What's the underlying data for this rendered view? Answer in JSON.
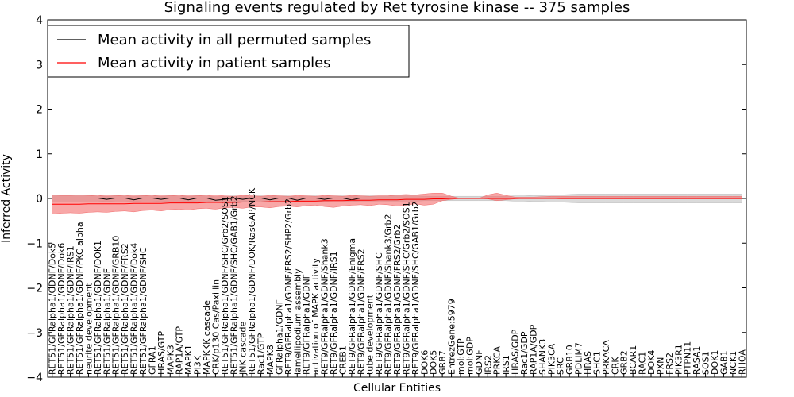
{
  "chart_data": {
    "type": "line",
    "title": "Signaling events regulated by Ret tyrosine kinase -- 375 samples",
    "xlabel": "Cellular Entities",
    "ylabel": "Inferred Activity",
    "ylim": [
      -4,
      4
    ],
    "yticks": [
      -4,
      -3,
      -2,
      -1,
      0,
      1,
      2,
      3,
      4
    ],
    "grid": false,
    "legend_position": "top-left",
    "categories": [
      "RET51/GFRalpha1/GDNF/Dok5",
      "RET51/GFRalpha1/GDNF/Dok6",
      "RET51/GFRalpha1/GDNF/IRS1",
      "RET51/GFRalpha1/GDNF/PKC alpha",
      "neurite development",
      "RET51/GFRalpha1/GDNF/DOK1",
      "RET51/GFRalpha1/GDNF",
      "RET51/GFRalpha1/GDNF/GRB10",
      "RET51/GFRalpha1/GDNF/FRS2",
      "RET51/GFRalpha1/GDNF/Dok4",
      "RET51/GFRalpha1/GDNF/SHC",
      "GFRA1",
      "HRAS/GTP",
      "MAPK3",
      "RAP1A/GTP",
      "MAPK1",
      "PI3K",
      "MAPKKK cascade",
      "CRK/p130 Cas/Paxillin",
      "RET51/GFRalpha1/GDNF/SHC/Grb2/SOS1",
      "RET51/GFRalpha1/GDNF/SHC/GAB1/Grb2",
      "JNK cascade",
      "RET51/GFRalpha1/GDNF/DOK/RasGAP/NCK",
      "Rac1/GTP",
      "MAPK8",
      "GFRalpha1/GDNF",
      "RET9/GFRalpha1/GDNF/FRS2/SHP2/Grb2",
      "lamellipodium assembly",
      "RET9/GFRalpha1/GDNF",
      "activation of MAPK activity",
      "RET9/GFRalpha1/GDNF/Shank3",
      "RET9/GFRalpha1/GDNF/IRS1",
      "CREB1",
      "RET9/GFRalpha1/GDNF/Enigma",
      "RET9/GFRalpha1/GDNF/FRS2",
      "tube development",
      "RET9/GFRalpha1/GDNF/SHC",
      "RET9/GFRalpha1/GDNF/Shank3/Grb2",
      "RET9/GFRalpha1/GDNF/FRS2/Grb2",
      "RET9/GFRalpha1/GDNF/SHC/Grb2/SOS1",
      "RET9/GFRalpha1/GDNF/SHC/GAB1/Grb2",
      "DOK6",
      "DOK5",
      "GRB7",
      "EntrezGene:5979",
      "mol:GTP",
      "mol:GDP",
      "GDNF",
      "IRS2",
      "PRKCA",
      "IRS1",
      "HRAS/GDP",
      "Rac1/GDP",
      "RAP1A/GDP",
      "SHANK3",
      "PIK3CA",
      "SRC",
      "GRB10",
      "PDLIM7",
      "HRAS",
      "SHC1",
      "PRKACA",
      "CRK",
      "GRB2",
      "BCAR1",
      "RAC1",
      "DOK4",
      "PXN",
      "FRS2",
      "PIK3R1",
      "PTPN11",
      "RASA1",
      "SOS1",
      "DOK1",
      "GAB1",
      "NCK1",
      "RHOA"
    ],
    "series": [
      {
        "name": "Mean activity in all permuted samples",
        "color": "#000000",
        "band_color": "#bbbbbb",
        "values": [
          0.01,
          0.01,
          0.01,
          0.01,
          0.01,
          0.01,
          -0.02,
          0.01,
          0.01,
          -0.03,
          0.01,
          0.01,
          -0.02,
          0.01,
          0.01,
          -0.03,
          0.01,
          0.01,
          -0.04,
          -0.02,
          0.01,
          -0.02,
          0.01,
          0.01,
          -0.03,
          0.01,
          0.01,
          -0.04,
          0.01,
          0.01,
          -0.02,
          0.01,
          0.01,
          -0.03,
          0.01,
          0.01,
          0.01,
          0.01,
          0.01,
          0.01,
          0.01,
          0.01,
          0.01,
          0.01,
          0.01,
          0.0,
          0.0,
          0.0,
          0.0,
          0.0,
          0.0,
          0.0,
          0.0,
          0.0,
          0.0,
          0.0,
          0.0,
          0.0,
          0.0,
          0.0,
          0.0,
          0.0,
          0.0,
          0.0,
          0.0,
          0.0,
          0.0,
          0.0,
          0.0,
          0.0,
          0.0,
          0.0,
          0.0,
          0.0,
          0.0,
          0.0,
          0.0
        ],
        "lower": [
          -0.06,
          -0.06,
          -0.06,
          -0.06,
          -0.06,
          -0.06,
          -0.07,
          -0.06,
          -0.06,
          -0.07,
          -0.06,
          -0.06,
          -0.07,
          -0.06,
          -0.06,
          -0.07,
          -0.06,
          -0.06,
          -0.08,
          -0.07,
          -0.06,
          -0.07,
          -0.06,
          -0.06,
          -0.07,
          -0.06,
          -0.06,
          -0.08,
          -0.06,
          -0.06,
          -0.07,
          -0.06,
          -0.06,
          -0.07,
          -0.06,
          -0.06,
          -0.06,
          -0.06,
          -0.06,
          -0.06,
          -0.06,
          -0.05,
          -0.05,
          -0.05,
          -0.05,
          -0.05,
          -0.05,
          -0.05,
          -0.05,
          -0.05,
          -0.05,
          -0.06,
          -0.06,
          -0.07,
          -0.07,
          -0.08,
          -0.08,
          -0.09,
          -0.1,
          -0.1,
          -0.1,
          -0.1,
          -0.1,
          -0.1,
          -0.1,
          -0.1,
          -0.1,
          -0.1,
          -0.1,
          -0.1,
          -0.1,
          -0.1,
          -0.1,
          -0.1,
          -0.1,
          -0.1,
          -0.1
        ],
        "upper": [
          0.06,
          0.06,
          0.06,
          0.06,
          0.06,
          0.06,
          0.05,
          0.06,
          0.06,
          0.05,
          0.06,
          0.06,
          0.05,
          0.06,
          0.06,
          0.05,
          0.06,
          0.06,
          0.04,
          0.05,
          0.06,
          0.05,
          0.06,
          0.06,
          0.05,
          0.06,
          0.06,
          0.04,
          0.06,
          0.06,
          0.05,
          0.06,
          0.06,
          0.05,
          0.06,
          0.06,
          0.06,
          0.06,
          0.06,
          0.06,
          0.06,
          0.05,
          0.05,
          0.05,
          0.05,
          0.05,
          0.05,
          0.05,
          0.05,
          0.05,
          0.05,
          0.06,
          0.06,
          0.07,
          0.07,
          0.08,
          0.08,
          0.09,
          0.1,
          0.1,
          0.1,
          0.1,
          0.1,
          0.1,
          0.1,
          0.1,
          0.1,
          0.1,
          0.1,
          0.1,
          0.1,
          0.1,
          0.1,
          0.1,
          0.1,
          0.1,
          0.1
        ]
      },
      {
        "name": "Mean activity in patient samples",
        "color": "#ff0000",
        "band_color": "#f36c6c",
        "values": [
          -0.13,
          -0.13,
          -0.13,
          -0.13,
          -0.12,
          -0.12,
          -0.12,
          -0.12,
          -0.12,
          -0.11,
          -0.11,
          -0.11,
          -0.11,
          -0.1,
          -0.1,
          -0.1,
          -0.1,
          -0.09,
          -0.09,
          -0.09,
          -0.09,
          -0.08,
          -0.08,
          -0.08,
          -0.07,
          -0.07,
          -0.07,
          -0.06,
          -0.06,
          -0.06,
          -0.05,
          -0.05,
          -0.05,
          -0.04,
          -0.04,
          -0.04,
          -0.03,
          -0.03,
          -0.03,
          -0.02,
          -0.02,
          -0.02,
          -0.01,
          -0.01,
          0.0,
          0.0,
          0.0,
          0.0,
          0.0,
          0.0,
          0.0,
          0.0,
          0.0,
          0.0,
          0.0,
          0.0,
          0.0,
          0.0,
          0.0,
          0.0,
          0.0,
          0.0,
          0.0,
          0.0,
          0.0,
          0.0,
          0.0,
          0.0,
          0.0,
          0.0,
          0.0,
          0.0,
          0.0,
          0.0,
          0.0,
          0.0,
          0.0
        ],
        "lower": [
          -0.35,
          -0.33,
          -0.32,
          -0.33,
          -0.31,
          -0.3,
          -0.31,
          -0.29,
          -0.28,
          -0.3,
          -0.27,
          -0.26,
          -0.28,
          -0.25,
          -0.24,
          -0.26,
          -0.23,
          -0.22,
          -0.24,
          -0.21,
          -0.2,
          -0.22,
          -0.19,
          -0.19,
          -0.21,
          -0.18,
          -0.17,
          -0.19,
          -0.16,
          -0.15,
          -0.18,
          -0.2,
          -0.17,
          -0.15,
          -0.14,
          -0.16,
          -0.13,
          -0.14,
          -0.17,
          -0.15,
          -0.12,
          -0.15,
          -0.13,
          -0.05,
          -0.02,
          0.0,
          0.0,
          0.0,
          -0.01,
          -0.05,
          -0.03,
          -0.01,
          0.0,
          0.0,
          0.0,
          0.0,
          -0.01,
          -0.01,
          -0.01,
          -0.01,
          -0.01,
          -0.01,
          -0.01,
          -0.01,
          -0.01,
          -0.01,
          -0.01,
          -0.01,
          -0.01,
          -0.01,
          -0.01,
          -0.01,
          -0.01,
          -0.01,
          -0.01,
          -0.01,
          -0.01
        ],
        "upper": [
          0.08,
          0.07,
          0.07,
          0.08,
          0.07,
          0.06,
          0.08,
          0.07,
          0.06,
          0.08,
          0.07,
          0.06,
          0.08,
          0.07,
          0.06,
          0.08,
          0.07,
          0.06,
          0.08,
          0.06,
          0.05,
          0.07,
          0.06,
          0.05,
          0.07,
          0.06,
          0.05,
          0.07,
          0.06,
          0.05,
          0.07,
          0.06,
          0.05,
          0.07,
          0.06,
          0.05,
          0.06,
          0.06,
          0.08,
          0.09,
          0.08,
          0.1,
          0.12,
          0.12,
          0.05,
          0.0,
          0.0,
          0.0,
          0.08,
          0.12,
          0.07,
          0.03,
          0.03,
          0.03,
          0.04,
          0.05,
          0.05,
          0.05,
          0.05,
          0.05,
          0.05,
          0.05,
          0.05,
          0.05,
          0.05,
          0.05,
          0.05,
          0.05,
          0.05,
          0.05,
          0.05,
          0.05,
          0.05,
          0.05,
          0.05,
          0.05,
          0.05
        ]
      }
    ]
  }
}
